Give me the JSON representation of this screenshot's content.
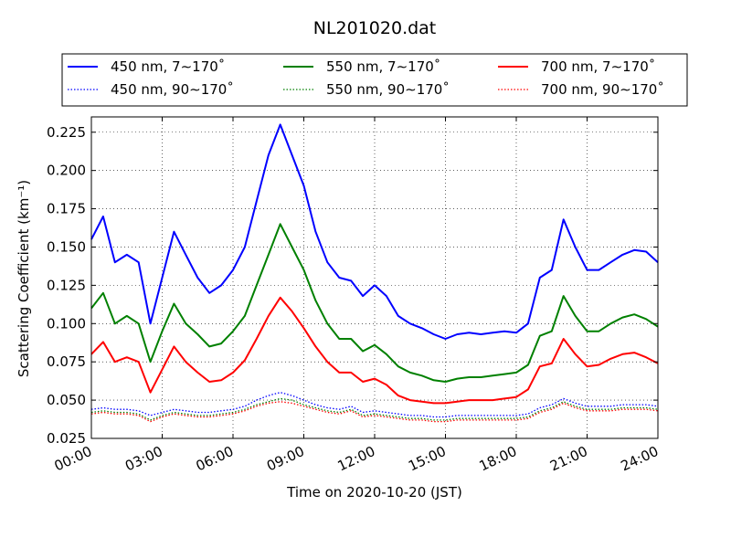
{
  "chart_data": {
    "type": "line",
    "title": "NL201020.dat",
    "xlabel": "Time on 2020-10-20 (JST)",
    "ylabel": "Scattering Coefficient (km⁻¹)",
    "xlim": [
      "00:00",
      "24:00"
    ],
    "ylim": [
      0.025,
      0.235
    ],
    "x_ticks": [
      "00:00",
      "03:00",
      "06:00",
      "09:00",
      "12:00",
      "15:00",
      "18:00",
      "21:00",
      "24:00"
    ],
    "y_ticks": [
      "0.025",
      "0.050",
      "0.075",
      "0.100",
      "0.125",
      "0.150",
      "0.175",
      "0.200",
      "0.225"
    ],
    "grid": true,
    "legend_position": "top",
    "x": [
      "00:00",
      "00:30",
      "01:00",
      "01:30",
      "02:00",
      "02:30",
      "03:00",
      "03:30",
      "04:00",
      "04:30",
      "05:00",
      "05:30",
      "06:00",
      "06:30",
      "07:00",
      "07:30",
      "08:00",
      "08:30",
      "09:00",
      "09:30",
      "10:00",
      "10:30",
      "11:00",
      "11:30",
      "12:00",
      "12:30",
      "13:00",
      "13:30",
      "14:00",
      "14:30",
      "15:00",
      "15:30",
      "16:00",
      "16:30",
      "17:00",
      "17:30",
      "18:00",
      "18:30",
      "19:00",
      "19:30",
      "20:00",
      "20:30",
      "21:00",
      "21:30",
      "22:00",
      "22:30",
      "23:00",
      "23:30",
      "24:00"
    ],
    "series": [
      {
        "name": "450 nm, 7∼170˚",
        "color": "#0000ff",
        "style": "solid",
        "values": [
          0.155,
          0.17,
          0.14,
          0.145,
          0.14,
          0.1,
          0.13,
          0.16,
          0.145,
          0.13,
          0.12,
          0.125,
          0.135,
          0.15,
          0.18,
          0.21,
          0.23,
          0.21,
          0.19,
          0.16,
          0.14,
          0.13,
          0.128,
          0.118,
          0.125,
          0.118,
          0.105,
          0.1,
          0.097,
          0.093,
          0.09,
          0.093,
          0.094,
          0.093,
          0.094,
          0.095,
          0.094,
          0.1,
          0.13,
          0.135,
          0.168,
          0.15,
          0.135,
          0.135,
          0.14,
          0.145,
          0.148,
          0.147,
          0.14
        ]
      },
      {
        "name": "450 nm, 90∼170˚",
        "color": "#0000ff",
        "style": "dotted",
        "values": [
          0.044,
          0.045,
          0.044,
          0.044,
          0.043,
          0.04,
          0.042,
          0.044,
          0.043,
          0.042,
          0.042,
          0.043,
          0.044,
          0.046,
          0.05,
          0.053,
          0.055,
          0.053,
          0.05,
          0.047,
          0.045,
          0.044,
          0.046,
          0.042,
          0.043,
          0.042,
          0.041,
          0.04,
          0.04,
          0.039,
          0.039,
          0.04,
          0.04,
          0.04,
          0.04,
          0.04,
          0.04,
          0.041,
          0.045,
          0.047,
          0.051,
          0.048,
          0.046,
          0.046,
          0.046,
          0.047,
          0.047,
          0.047,
          0.046
        ]
      },
      {
        "name": "550 nm, 7∼170˚",
        "color": "#008000",
        "style": "solid",
        "values": [
          0.11,
          0.12,
          0.1,
          0.105,
          0.1,
          0.075,
          0.095,
          0.113,
          0.1,
          0.093,
          0.085,
          0.087,
          0.095,
          0.105,
          0.125,
          0.145,
          0.165,
          0.15,
          0.135,
          0.115,
          0.1,
          0.09,
          0.09,
          0.082,
          0.086,
          0.08,
          0.072,
          0.068,
          0.066,
          0.063,
          0.062,
          0.064,
          0.065,
          0.065,
          0.066,
          0.067,
          0.068,
          0.073,
          0.092,
          0.095,
          0.118,
          0.105,
          0.095,
          0.095,
          0.1,
          0.104,
          0.106,
          0.103,
          0.098
        ]
      },
      {
        "name": "550 nm, 90∼170˚",
        "color": "#008000",
        "style": "dotted",
        "values": [
          0.042,
          0.043,
          0.042,
          0.042,
          0.041,
          0.037,
          0.04,
          0.042,
          0.041,
          0.04,
          0.04,
          0.041,
          0.042,
          0.044,
          0.047,
          0.049,
          0.051,
          0.05,
          0.047,
          0.045,
          0.043,
          0.042,
          0.044,
          0.04,
          0.041,
          0.04,
          0.039,
          0.038,
          0.038,
          0.037,
          0.037,
          0.038,
          0.038,
          0.038,
          0.038,
          0.038,
          0.038,
          0.039,
          0.043,
          0.045,
          0.049,
          0.046,
          0.044,
          0.044,
          0.044,
          0.045,
          0.045,
          0.045,
          0.044
        ]
      },
      {
        "name": "700 nm, 7∼170˚",
        "color": "#ff0000",
        "style": "solid",
        "values": [
          0.08,
          0.088,
          0.075,
          0.078,
          0.075,
          0.055,
          0.07,
          0.085,
          0.075,
          0.068,
          0.062,
          0.063,
          0.068,
          0.076,
          0.09,
          0.105,
          0.117,
          0.108,
          0.097,
          0.085,
          0.075,
          0.068,
          0.068,
          0.062,
          0.064,
          0.06,
          0.053,
          0.05,
          0.049,
          0.048,
          0.048,
          0.049,
          0.05,
          0.05,
          0.05,
          0.051,
          0.052,
          0.057,
          0.072,
          0.074,
          0.09,
          0.08,
          0.072,
          0.073,
          0.077,
          0.08,
          0.081,
          0.078,
          0.074
        ]
      },
      {
        "name": "700 nm, 90∼170˚",
        "color": "#ff0000",
        "style": "dotted",
        "values": [
          0.041,
          0.042,
          0.041,
          0.041,
          0.04,
          0.036,
          0.039,
          0.041,
          0.04,
          0.039,
          0.039,
          0.04,
          0.041,
          0.043,
          0.046,
          0.048,
          0.049,
          0.048,
          0.046,
          0.044,
          0.042,
          0.041,
          0.043,
          0.039,
          0.04,
          0.039,
          0.038,
          0.037,
          0.037,
          0.036,
          0.036,
          0.037,
          0.037,
          0.037,
          0.037,
          0.037,
          0.037,
          0.038,
          0.042,
          0.044,
          0.048,
          0.045,
          0.043,
          0.043,
          0.043,
          0.044,
          0.044,
          0.044,
          0.043
        ]
      }
    ]
  }
}
